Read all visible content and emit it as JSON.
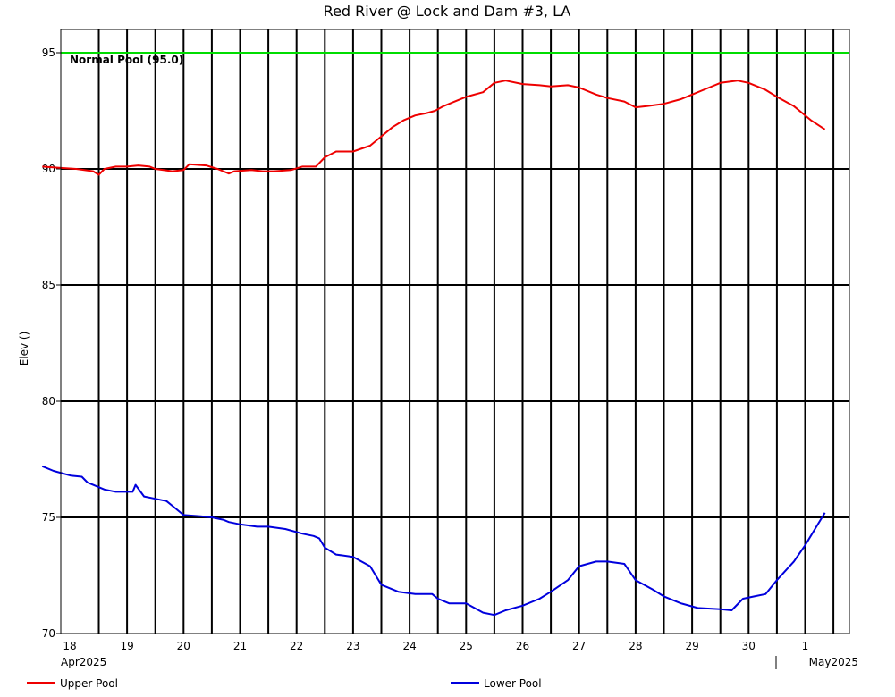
{
  "chart_data": {
    "type": "line",
    "title": "Red River @ Lock and Dam #3, LA",
    "ylabel": "Elev ()",
    "xlabel": "",
    "ylim": [
      70,
      96
    ],
    "yticks": [
      70,
      75,
      80,
      85,
      90,
      95
    ],
    "x_tick_labels": [
      "18",
      "19",
      "20",
      "21",
      "22",
      "23",
      "24",
      "25",
      "26",
      "27",
      "28",
      "29",
      "30",
      "1"
    ],
    "month_labels": [
      "Apr2025",
      "May2025"
    ],
    "grid": true,
    "legend_position": "bottom",
    "reference_line": {
      "value": 95.0,
      "label": "Normal Pool (95.0)",
      "color": "#00dd00"
    },
    "series": [
      {
        "name": "Upper Pool",
        "color": "#ee0000",
        "x": [
          0,
          0.3,
          0.6,
          0.9,
          1.0,
          1.1,
          1.3,
          1.5,
          1.7,
          1.9,
          2.0,
          2.3,
          2.5,
          2.6,
          2.9,
          3.1,
          3.3,
          3.4,
          3.7,
          3.9,
          4.1,
          4.4,
          4.6,
          4.78,
          4.84,
          5.0,
          5.2,
          5.5,
          5.8,
          6.0,
          6.2,
          6.4,
          6.6,
          6.8,
          6.95,
          7.1,
          7.3,
          7.5,
          7.8,
          8.0,
          8.2,
          8.5,
          8.8,
          9.0,
          9.3,
          9.5,
          9.8,
          10.0,
          10.3,
          10.5,
          10.7,
          11.0,
          11.3,
          11.5,
          11.8,
          12.0,
          12.3,
          12.5,
          12.8,
          13.0,
          13.3,
          13.6,
          13.85
        ],
        "values": [
          90.1,
          90.05,
          90.0,
          89.9,
          89.75,
          90.0,
          90.1,
          90.1,
          90.15,
          90.1,
          90.0,
          89.9,
          89.95,
          90.2,
          90.15,
          90.0,
          89.8,
          89.9,
          89.95,
          89.9,
          89.9,
          89.95,
          90.1,
          90.1,
          90.1,
          90.5,
          90.75,
          90.75,
          91.0,
          91.4,
          91.8,
          92.1,
          92.3,
          92.4,
          92.5,
          92.7,
          92.9,
          93.1,
          93.3,
          93.7,
          93.8,
          93.65,
          93.6,
          93.55,
          93.6,
          93.5,
          93.2,
          93.05,
          92.9,
          92.65,
          92.7,
          92.8,
          93.0,
          93.2,
          93.5,
          93.7,
          93.8,
          93.7,
          93.4,
          93.1,
          92.7,
          92.1,
          91.7
        ]
      },
      {
        "name": "Lower Pool",
        "color": "#0000dd",
        "x": [
          0,
          0.2,
          0.5,
          0.7,
          0.8,
          0.9,
          1.1,
          1.3,
          1.6,
          1.65,
          1.8,
          2.0,
          2.2,
          2.3,
          2.5,
          2.8,
          3.0,
          3.2,
          3.3,
          3.5,
          3.8,
          4.0,
          4.3,
          4.6,
          4.8,
          4.9,
          5.0,
          5.2,
          5.5,
          5.8,
          6.0,
          6.3,
          6.6,
          6.9,
          7.0,
          7.2,
          7.5,
          7.8,
          8.0,
          8.2,
          8.5,
          8.8,
          9.0,
          9.3,
          9.5,
          9.8,
          10.0,
          10.3,
          10.5,
          10.8,
          11.0,
          11.3,
          11.6,
          12.0,
          12.2,
          12.4,
          12.6,
          12.8,
          13.0,
          13.3,
          13.5,
          13.7,
          13.85
        ],
        "values": [
          77.2,
          77.0,
          76.8,
          76.75,
          76.5,
          76.4,
          76.2,
          76.1,
          76.1,
          76.4,
          75.9,
          75.8,
          75.7,
          75.5,
          75.1,
          75.05,
          75.0,
          74.9,
          74.8,
          74.7,
          74.6,
          74.6,
          74.5,
          74.3,
          74.2,
          74.1,
          73.7,
          73.4,
          73.3,
          72.9,
          72.1,
          71.8,
          71.7,
          71.7,
          71.5,
          71.3,
          71.3,
          70.9,
          70.8,
          71.0,
          71.2,
          71.5,
          71.8,
          72.3,
          72.9,
          73.1,
          73.1,
          73.0,
          72.3,
          71.9,
          71.6,
          71.3,
          71.1,
          71.05,
          71.0,
          71.5,
          71.6,
          71.7,
          72.3,
          73.1,
          73.8,
          74.6,
          75.2
        ]
      }
    ]
  }
}
